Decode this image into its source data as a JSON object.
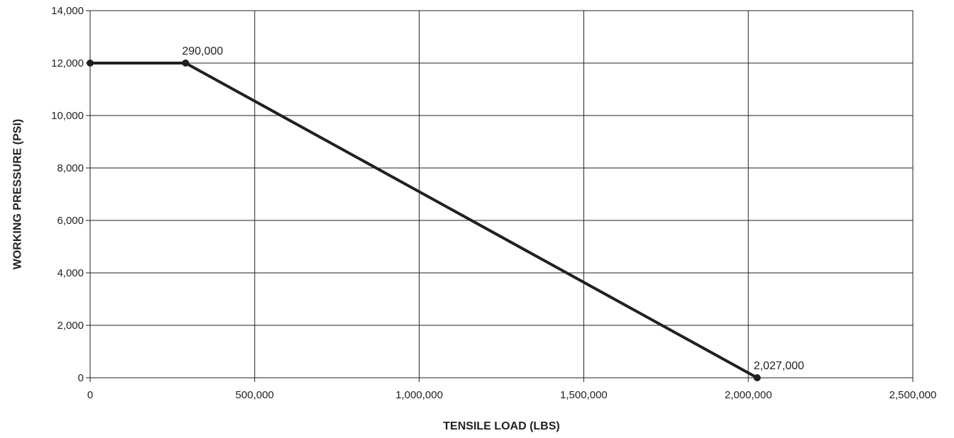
{
  "chart_data": {
    "type": "line",
    "xlabel": "TENSILE LOAD (LBS)",
    "ylabel": "WORKING PRESSURE (PSI)",
    "xlim": [
      0,
      2500000
    ],
    "ylim": [
      0,
      14000
    ],
    "x_ticks": [
      "0",
      "500,000",
      "1,000,000",
      "1,500,000",
      "2,000,000",
      "2,500,000"
    ],
    "y_ticks": [
      "0",
      "2,000",
      "4,000",
      "6,000",
      "8,000",
      "10,000",
      "12,000",
      "14,000"
    ],
    "grid": true,
    "series": [
      {
        "x": [
          0,
          290000,
          2027000
        ],
        "y": [
          12000,
          12000,
          0
        ],
        "labels": [
          "",
          "290,000",
          "2,027,000"
        ]
      }
    ]
  }
}
